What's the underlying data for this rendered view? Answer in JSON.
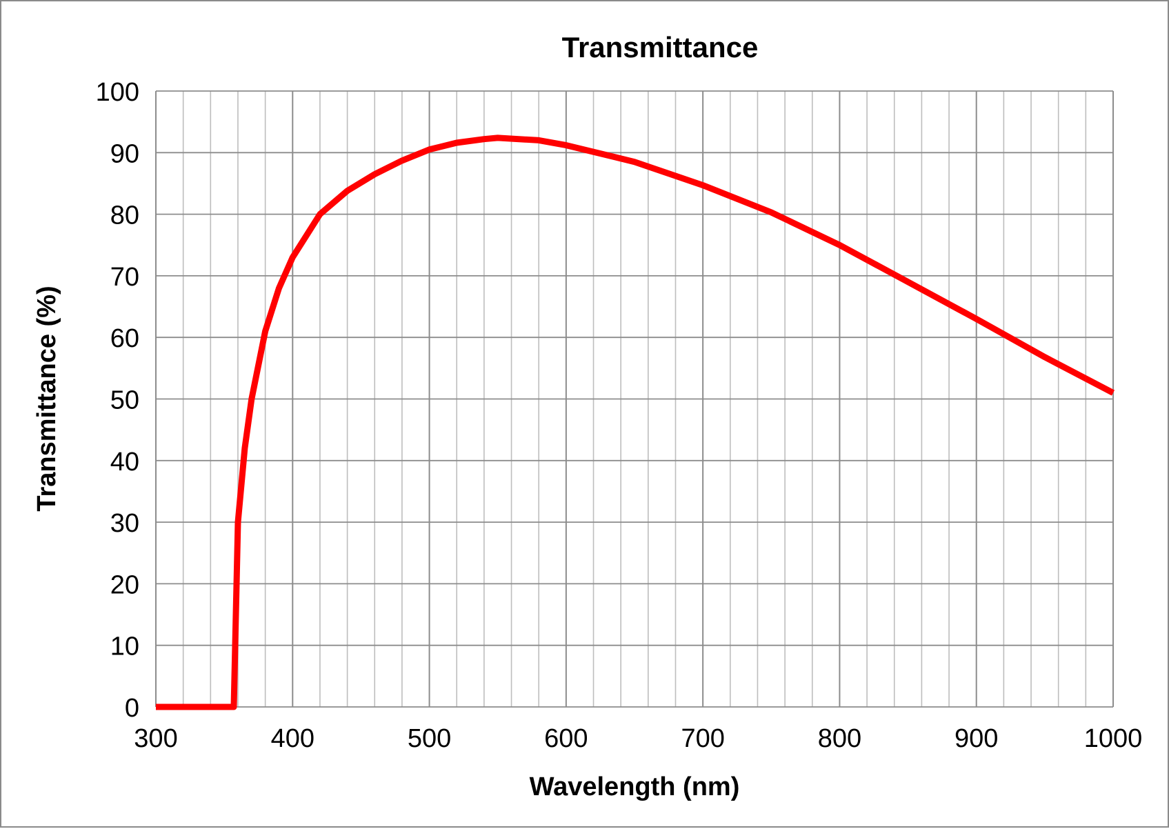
{
  "chart_data": {
    "type": "line",
    "title": "Transmittance",
    "xlabel": "Wavelength (nm)",
    "ylabel": "Transmittance (%)",
    "xlim": [
      300,
      1000
    ],
    "ylim": [
      0,
      100
    ],
    "x_major_step": 100,
    "x_minor_step": 20,
    "y_step": 10,
    "grid": true,
    "xticks": [
      "300",
      "400",
      "500",
      "600",
      "700",
      "800",
      "900",
      "1000"
    ],
    "yticks": [
      "0",
      "10",
      "20",
      "30",
      "40",
      "50",
      "60",
      "70",
      "80",
      "90",
      "100"
    ],
    "series": [
      {
        "name": "Transmittance",
        "color": "#ff0000",
        "x": [
          300,
          320,
          340,
          355,
          357,
          360,
          365,
          370,
          380,
          390,
          400,
          420,
          440,
          460,
          480,
          500,
          520,
          540,
          550,
          580,
          600,
          650,
          700,
          750,
          800,
          850,
          900,
          950,
          1000
        ],
        "y": [
          0,
          0,
          0,
          0,
          0,
          30,
          42,
          50,
          61,
          68,
          73,
          80,
          83.8,
          86.5,
          88.7,
          90.5,
          91.6,
          92.2,
          92.4,
          92,
          91.2,
          88.5,
          84.7,
          80.3,
          75,
          69,
          63,
          56.8,
          51
        ]
      }
    ]
  }
}
